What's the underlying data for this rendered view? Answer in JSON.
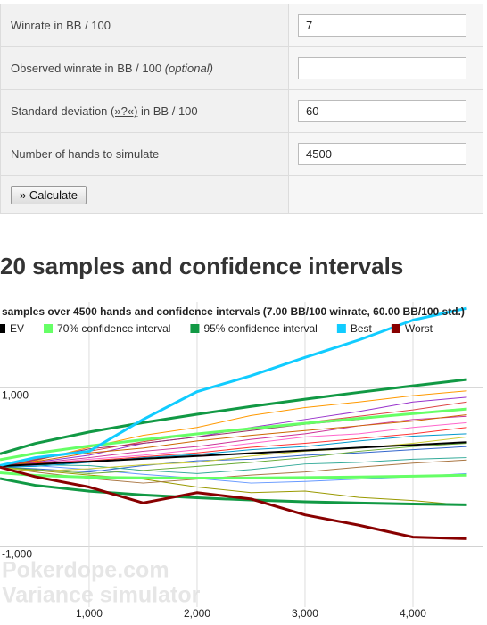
{
  "form": {
    "rows": [
      {
        "label": "Winrate in BB / 100",
        "value": "7"
      },
      {
        "label": "Observed winrate in BB / 100",
        "note": "(optional)"
      },
      {
        "label_before": "Standard deviation",
        "link": "(»?«)",
        "label_after": "in BB / 100",
        "value": "60"
      },
      {
        "label": "Number of hands to simulate",
        "value": "4500"
      }
    ],
    "button": "» Calculate"
  },
  "heading": "20 samples and confidence intervals",
  "watermark": [
    "Pokerdope.com",
    "Variance simulator"
  ],
  "chart_data": {
    "type": "line",
    "title": "samples over 4500 hands and confidence intervals (7.00 BB/100 winrate, 60.00 BB/100 std.)",
    "x": [
      174,
      500,
      1000,
      1500,
      2000,
      2500,
      3000,
      3500,
      4000,
      4500
    ],
    "xlim": [
      174,
      4653
    ],
    "xticks": [
      {
        "value": 1000,
        "label": "1,000"
      },
      {
        "value": 2000,
        "label": "2,000"
      },
      {
        "value": 3000,
        "label": "3,000"
      },
      {
        "value": 4000,
        "label": "4,000"
      }
    ],
    "ylim": [
      -1760,
      2080
    ],
    "yticks": [
      {
        "value": 1000,
        "label": "1,000"
      },
      {
        "value": -1000,
        "label": "-1,000"
      }
    ],
    "grid": true,
    "legend": "top",
    "series": [
      {
        "color": "#ff9900",
        "width": 1,
        "values": [
          0,
          80,
          250,
          400,
          500,
          650,
          750,
          820,
          900,
          960
        ]
      },
      {
        "color": "#9933cc",
        "width": 1,
        "values": [
          0,
          60,
          150,
          300,
          380,
          500,
          600,
          700,
          820,
          880
        ]
      },
      {
        "color": "#999900",
        "width": 1,
        "values": [
          0,
          -40,
          -100,
          -150,
          -250,
          -320,
          -300,
          -380,
          -420,
          -480
        ]
      },
      {
        "color": "#cc3399",
        "width": 1,
        "values": [
          0,
          50,
          120,
          200,
          260,
          350,
          420,
          520,
          600,
          640
        ]
      },
      {
        "color": "#3366cc",
        "width": 1,
        "values": [
          0,
          -20,
          -60,
          20,
          80,
          100,
          150,
          180,
          220,
          260
        ]
      },
      {
        "color": "#dd4444",
        "width": 1,
        "values": [
          0,
          100,
          200,
          320,
          420,
          480,
          560,
          640,
          720,
          820
        ]
      },
      {
        "color": "#33aa99",
        "width": 1,
        "values": [
          0,
          30,
          20,
          -40,
          -80,
          -30,
          40,
          60,
          100,
          120
        ]
      },
      {
        "color": "#aa7744",
        "width": 1,
        "values": [
          0,
          -60,
          -140,
          -200,
          -150,
          -100,
          -60,
          0,
          50,
          90
        ]
      },
      {
        "color": "#ff66cc",
        "width": 1,
        "values": [
          0,
          40,
          100,
          150,
          220,
          300,
          380,
          420,
          500,
          560
        ]
      },
      {
        "color": "#6699ff",
        "width": 1,
        "values": [
          0,
          20,
          -30,
          -90,
          -140,
          -200,
          -180,
          -150,
          -120,
          -80
        ]
      },
      {
        "color": "#cc6600",
        "width": 1,
        "values": [
          0,
          70,
          180,
          240,
          330,
          400,
          460,
          520,
          580,
          660
        ]
      },
      {
        "color": "#66aa33",
        "width": 1,
        "values": [
          0,
          -30,
          -80,
          -40,
          10,
          60,
          120,
          200,
          260,
          300
        ]
      },
      {
        "color": "#993366",
        "width": 1,
        "values": [
          0,
          90,
          230,
          300,
          380,
          460,
          540,
          600,
          680,
          740
        ]
      },
      {
        "color": "#0099cc",
        "width": 1,
        "values": [
          0,
          10,
          60,
          120,
          160,
          220,
          260,
          330,
          390,
          420
        ]
      },
      {
        "color": "#cccc33",
        "width": 1,
        "values": [
          0,
          -50,
          -20,
          30,
          60,
          140,
          200,
          240,
          300,
          380
        ]
      },
      {
        "color": "#ff3333",
        "width": 1,
        "values": [
          0,
          50,
          80,
          130,
          180,
          250,
          300,
          360,
          420,
          500
        ]
      },
      {
        "name": "70% confidence interval",
        "color": "#66ff66",
        "width": 3,
        "values": [
          94,
          174,
          267,
          345,
          418,
          486,
          551,
          613,
          673,
          731
        ]
      },
      {
        "color": "#66ff66",
        "width": 3,
        "values": [
          -70,
          -104,
          -127,
          -135,
          -138,
          -136,
          -131,
          -123,
          -113,
          -101
        ]
      },
      {
        "name": "95% confidence interval",
        "color": "#119944",
        "width": 3,
        "values": [
          167,
          298,
          442,
          560,
          665,
          763,
          855,
          941,
          1023,
          1103
        ]
      },
      {
        "color": "#119944",
        "width": 3,
        "values": [
          -143,
          -228,
          -302,
          -350,
          -385,
          -413,
          -435,
          -451,
          -463,
          -473
        ]
      },
      {
        "name": "EV",
        "color": "#000000",
        "width": 2,
        "values": [
          12,
          35,
          70,
          105,
          140,
          175,
          210,
          245,
          280,
          315
        ]
      },
      {
        "name": "Best",
        "color": "#11ccff",
        "width": 3,
        "values": [
          20,
          120,
          200,
          600,
          950,
          1150,
          1380,
          1600,
          1850,
          2000
        ]
      },
      {
        "name": "Worst",
        "color": "#880000",
        "width": 3,
        "values": [
          0,
          -120,
          -250,
          -450,
          -320,
          -400,
          -600,
          -730,
          -880,
          -900
        ]
      }
    ]
  }
}
